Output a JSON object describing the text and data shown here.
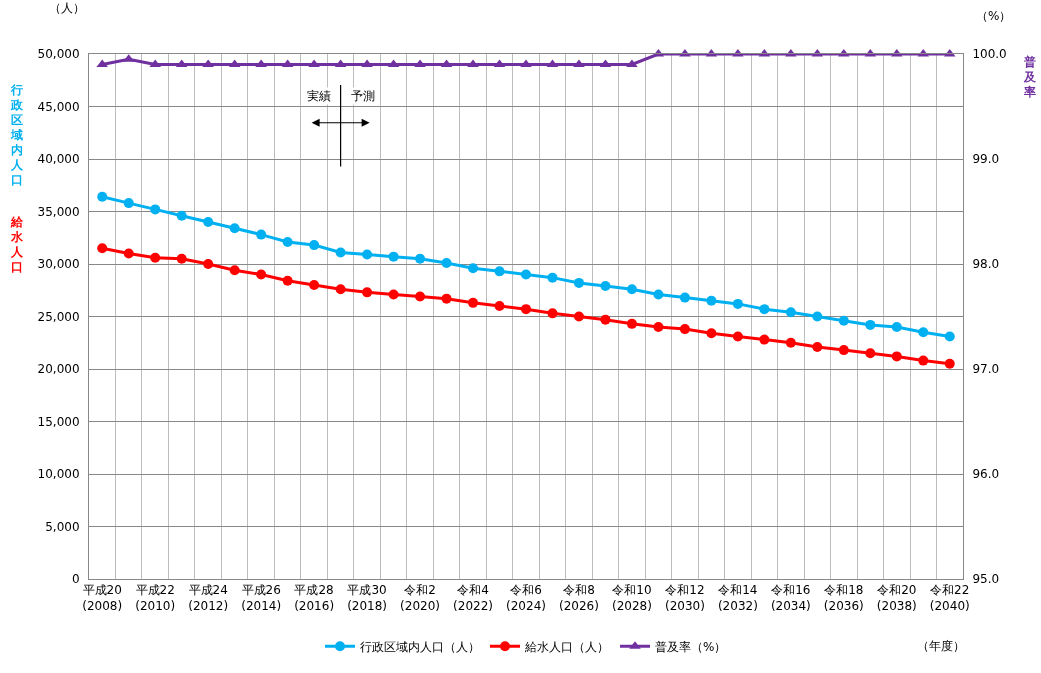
{
  "chart_data": {
    "type": "line",
    "categories": [
      "平成20\n(2008)",
      null,
      "平成22\n(2010)",
      null,
      "平成24\n(2012)",
      null,
      "平成26\n(2014)",
      null,
      "平成28\n(2016)",
      null,
      "平成30\n(2018)",
      null,
      "令和2\n(2020)",
      null,
      "令和4\n(2022)",
      null,
      "令和6\n(2024)",
      null,
      "令和8\n(2026)",
      null,
      "令和10\n(2028)",
      null,
      "令和12\n(2030)",
      null,
      "令和14\n(2032)",
      null,
      "令和16\n(2034)",
      null,
      "令和18\n(2036)",
      null,
      "令和20\n(2038)",
      null,
      "令和22\n(2040)"
    ],
    "series": [
      {
        "name": "行政区域内人口（人）",
        "color": "#00b0f0",
        "marker": "circle",
        "values": [
          36400,
          35800,
          35200,
          34600,
          34000,
          33400,
          32800,
          32100,
          31800,
          31100,
          30900,
          30700,
          30500,
          30100,
          29600,
          29300,
          29000,
          28700,
          28200,
          27900,
          27600,
          27100,
          26800,
          26500,
          26200,
          25700,
          25400,
          25000,
          24600,
          24200,
          24000,
          23500,
          23100
        ]
      },
      {
        "name": "給水人口（人）",
        "color": "#ff0000",
        "marker": "circle",
        "values": [
          31500,
          31000,
          30600,
          30500,
          30000,
          29400,
          29000,
          28400,
          28000,
          27600,
          27300,
          27100,
          26900,
          26700,
          26300,
          26000,
          25700,
          25300,
          25000,
          24700,
          24300,
          24000,
          23800,
          23400,
          23100,
          22800,
          22500,
          22100,
          21800,
          21500,
          21200,
          20800,
          20500
        ]
      },
      {
        "name": "普及率（%）",
        "color": "#7030a0",
        "marker": "triangle",
        "axis": "y2",
        "values": [
          99.9,
          99.95,
          99.9,
          99.9,
          99.9,
          99.9,
          99.9,
          99.9,
          99.9,
          99.9,
          99.9,
          99.9,
          99.9,
          99.9,
          99.9,
          99.9,
          99.9,
          99.9,
          99.9,
          99.9,
          99.9,
          100,
          100,
          100,
          100,
          100,
          100,
          100,
          100,
          100,
          100,
          100,
          100
        ]
      }
    ],
    "ylabel": "行政区域内人口",
    "y2label": "普及率",
    "ylim": [
      0,
      50000
    ],
    "yticks": [
      {
        "value": 0,
        "label": "0"
      },
      {
        "value": 5000,
        "label": "5,000"
      },
      {
        "value": 10000,
        "label": "10,000"
      },
      {
        "value": 15000,
        "label": "15,000"
      },
      {
        "value": 20000,
        "label": "20,000"
      },
      {
        "value": 25000,
        "label": "25,000"
      },
      {
        "value": 30000,
        "label": "30,000"
      },
      {
        "value": 35000,
        "label": "35,000"
      },
      {
        "value": 40000,
        "label": "40,000"
      },
      {
        "value": 45000,
        "label": "45,000"
      },
      {
        "value": 50000,
        "label": "50,000"
      }
    ],
    "y2lim": [
      95,
      100
    ],
    "y2ticks": [
      {
        "value": 95,
        "label": "95.0"
      },
      {
        "value": 96,
        "label": "96.0"
      },
      {
        "value": 97,
        "label": "97.0"
      },
      {
        "value": 98,
        "label": "98.0"
      },
      {
        "value": 99,
        "label": "99.0"
      },
      {
        "value": 100,
        "label": "100.0"
      }
    ],
    "annotations": [
      "（人）",
      "（%）",
      "（年度）",
      "実績",
      "予測",
      "給水人口"
    ],
    "grid": true,
    "legend": "bottom",
    "line_style": "solid"
  }
}
